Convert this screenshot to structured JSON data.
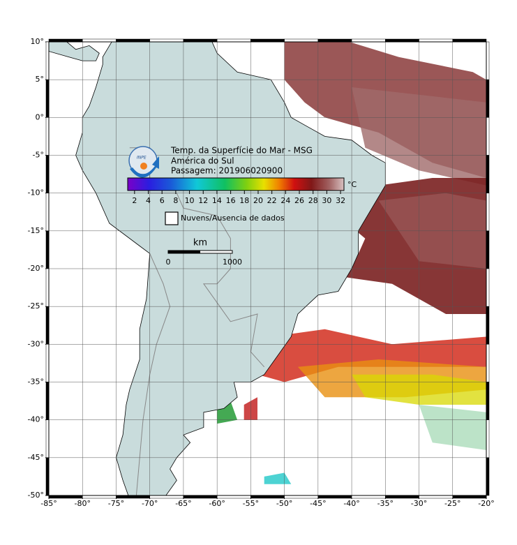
{
  "map": {
    "title_lines": [
      "Temp. da Superfície do Mar - MSG",
      "América do Sul",
      "Passagem: 201906020900"
    ],
    "xlim": [
      -85,
      -20
    ],
    "ylim": [
      -50,
      10
    ],
    "xticks": [
      {
        "value": -85,
        "label": "-85°"
      },
      {
        "value": -80,
        "label": "-80°"
      },
      {
        "value": -75,
        "label": "-75°"
      },
      {
        "value": -70,
        "label": "-70°"
      },
      {
        "value": -65,
        "label": "-65°"
      },
      {
        "value": -60,
        "label": "-60°"
      },
      {
        "value": -55,
        "label": "-55°"
      },
      {
        "value": -50,
        "label": "-50°"
      },
      {
        "value": -45,
        "label": "-45°"
      },
      {
        "value": -40,
        "label": "-40°"
      },
      {
        "value": -35,
        "label": "-35°"
      },
      {
        "value": -30,
        "label": "-30°"
      },
      {
        "value": -25,
        "label": "-25°"
      },
      {
        "value": -20,
        "label": "-20°"
      }
    ],
    "yticks": [
      {
        "value": 10,
        "label": "10°"
      },
      {
        "value": 5,
        "label": "5°"
      },
      {
        "value": 0,
        "label": "0°"
      },
      {
        "value": -5,
        "label": "-5°"
      },
      {
        "value": -10,
        "label": "-10°"
      },
      {
        "value": -15,
        "label": "-15°"
      },
      {
        "value": -20,
        "label": "-20°"
      },
      {
        "value": -25,
        "label": "-25°"
      },
      {
        "value": -30,
        "label": "-30°"
      },
      {
        "value": -35,
        "label": "-35°"
      },
      {
        "value": -40,
        "label": "-40°"
      },
      {
        "value": -45,
        "label": "-45°"
      },
      {
        "value": -50,
        "label": "-50°"
      }
    ],
    "grid": true,
    "colorbar": {
      "unit": "°C",
      "lim": [
        1,
        32.5
      ],
      "ticks": [
        2,
        4,
        6,
        8,
        10,
        12,
        14,
        16,
        18,
        20,
        22,
        24,
        26,
        28,
        30,
        32
      ]
    },
    "legend": {
      "label": "Nuvens/Ausencia de dados"
    },
    "scalebar": {
      "unit": "km",
      "ticks": [
        0,
        1000
      ]
    }
  }
}
